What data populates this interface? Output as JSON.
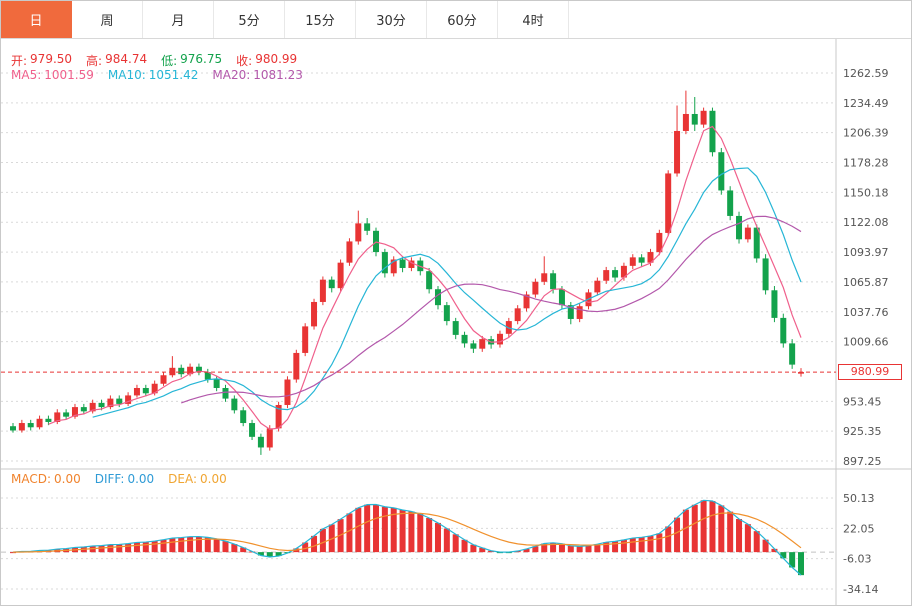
{
  "tabs": [
    {
      "name": "day",
      "label": "日",
      "active": true
    },
    {
      "name": "week",
      "label": "周",
      "active": false
    },
    {
      "name": "month",
      "label": "月",
      "active": false
    },
    {
      "name": "5min",
      "label": "5分",
      "active": false
    },
    {
      "name": "15min",
      "label": "15分",
      "active": false
    },
    {
      "name": "30min",
      "label": "30分",
      "active": false
    },
    {
      "name": "60min",
      "label": "60分",
      "active": false
    },
    {
      "name": "4hour",
      "label": "4时",
      "active": false
    }
  ],
  "quote_bar": {
    "open_label": "开:",
    "open_value": "979.50",
    "high_label": "高:",
    "high_value": "984.74",
    "low_label": "低:",
    "low_value": "976.75",
    "close_label": "收:",
    "close_value": "980.99"
  },
  "ma_bar": {
    "ma5_label": "MA5:",
    "ma5_value": "1001.59",
    "ma10_label": "MA10:",
    "ma10_value": "1051.42",
    "ma20_label": "MA20:",
    "ma20_value": "1081.23"
  },
  "macd_bar": {
    "macd_label": "MACD:",
    "macd_value": "0.00",
    "diff_label": "DIFF:",
    "diff_value": "0.00",
    "dea_label": "DEA:",
    "dea_value": "0.00"
  },
  "current_price_tag": "980.99",
  "colors": {
    "up": "#e83434",
    "down": "#13a24c",
    "ma5": "#f0608c",
    "ma10": "#27b6d6",
    "ma20": "#b358ab",
    "diff": "#27b6d6",
    "dea": "#f0912d",
    "grid": "#d9d9d9",
    "axis_line": "#c9c9c9",
    "active_tab": "#f06a3d",
    "price_line": "#e83434"
  },
  "chart_data": {
    "type": "candlestick",
    "title": "",
    "xlabel": "",
    "ylabel": "",
    "grid": "horizontal-only",
    "legend_position": "none",
    "price_panel": {
      "y_axis_ticks": [
        1262.59,
        1234.49,
        1206.39,
        1178.28,
        1150.18,
        1122.08,
        1093.97,
        1065.87,
        1037.76,
        1009.66,
        953.45,
        925.35,
        897.25
      ],
      "y_range": [
        890,
        1276
      ],
      "current_price": 980.99,
      "last_bar_ohlc": {
        "open": 979.5,
        "high": 984.74,
        "low": 976.75,
        "close": 980.99
      },
      "ma_overlays": [
        {
          "period": 5,
          "displayed_value": 1001.59
        },
        {
          "period": 10,
          "displayed_value": 1051.42
        },
        {
          "period": 20,
          "displayed_value": 1081.23
        }
      ],
      "candles_ohlc_estimated": [
        [
          930,
          933,
          924,
          926
        ],
        [
          926,
          936,
          924,
          933
        ],
        [
          933,
          936,
          926,
          929
        ],
        [
          929,
          940,
          927,
          937
        ],
        [
          937,
          940,
          931,
          934
        ],
        [
          934,
          946,
          932,
          943
        ],
        [
          943,
          946,
          936,
          939
        ],
        [
          939,
          951,
          937,
          948
        ],
        [
          948,
          951,
          941,
          944
        ],
        [
          944,
          955,
          942,
          952
        ],
        [
          952,
          955,
          945,
          948
        ],
        [
          948,
          959,
          946,
          956
        ],
        [
          956,
          959,
          948,
          951
        ],
        [
          951,
          962,
          949,
          959
        ],
        [
          959,
          969,
          957,
          966
        ],
        [
          966,
          969,
          958,
          961
        ],
        [
          961,
          973,
          959,
          970
        ],
        [
          970,
          981,
          968,
          978
        ],
        [
          978,
          996,
          976,
          985
        ],
        [
          985,
          988,
          976,
          979
        ],
        [
          979,
          989,
          977,
          986
        ],
        [
          986,
          989,
          978,
          981
        ],
        [
          981,
          984,
          971,
          974
        ],
        [
          974,
          977,
          963,
          966
        ],
        [
          966,
          969,
          953,
          956
        ],
        [
          956,
          959,
          942,
          945
        ],
        [
          945,
          948,
          930,
          933
        ],
        [
          933,
          936,
          917,
          920
        ],
        [
          920,
          923,
          903,
          910
        ],
        [
          910,
          931,
          907,
          928
        ],
        [
          928,
          953,
          925,
          950
        ],
        [
          950,
          977,
          947,
          974
        ],
        [
          974,
          1002,
          971,
          999
        ],
        [
          999,
          1027,
          996,
          1024
        ],
        [
          1024,
          1050,
          1021,
          1047
        ],
        [
          1047,
          1071,
          1044,
          1068
        ],
        [
          1068,
          1071,
          1056,
          1060
        ],
        [
          1060,
          1087,
          1057,
          1084
        ],
        [
          1084,
          1107,
          1081,
          1104
        ],
        [
          1104,
          1133,
          1101,
          1121
        ],
        [
          1121,
          1126,
          1110,
          1114
        ],
        [
          1114,
          1117,
          1090,
          1094
        ],
        [
          1094,
          1097,
          1070,
          1074
        ],
        [
          1074,
          1090,
          1071,
          1087
        ],
        [
          1087,
          1090,
          1075,
          1079
        ],
        [
          1079,
          1089,
          1076,
          1086
        ],
        [
          1086,
          1089,
          1072,
          1076
        ],
        [
          1076,
          1079,
          1055,
          1059
        ],
        [
          1059,
          1062,
          1040,
          1044
        ],
        [
          1044,
          1047,
          1025,
          1029
        ],
        [
          1029,
          1032,
          1012,
          1016
        ],
        [
          1016,
          1019,
          1004,
          1008
        ],
        [
          1008,
          1011,
          999,
          1003
        ],
        [
          1003,
          1015,
          1000,
          1012
        ],
        [
          1012,
          1015,
          1003,
          1007
        ],
        [
          1007,
          1020,
          1004,
          1017
        ],
        [
          1017,
          1032,
          1014,
          1029
        ],
        [
          1029,
          1044,
          1026,
          1041
        ],
        [
          1041,
          1057,
          1038,
          1054
        ],
        [
          1054,
          1069,
          1051,
          1066
        ],
        [
          1066,
          1090,
          1063,
          1074
        ],
        [
          1074,
          1077,
          1055,
          1059
        ],
        [
          1059,
          1062,
          1040,
          1044
        ],
        [
          1044,
          1047,
          1026,
          1031
        ],
        [
          1031,
          1046,
          1028,
          1043
        ],
        [
          1043,
          1059,
          1040,
          1056
        ],
        [
          1056,
          1070,
          1053,
          1067
        ],
        [
          1067,
          1080,
          1064,
          1077
        ],
        [
          1077,
          1080,
          1066,
          1070
        ],
        [
          1070,
          1084,
          1067,
          1081
        ],
        [
          1081,
          1092,
          1078,
          1089
        ],
        [
          1089,
          1092,
          1080,
          1084
        ],
        [
          1084,
          1097,
          1081,
          1094
        ],
        [
          1094,
          1115,
          1091,
          1112
        ],
        [
          1112,
          1171,
          1109,
          1168
        ],
        [
          1168,
          1232,
          1165,
          1208
        ],
        [
          1208,
          1246,
          1205,
          1224
        ],
        [
          1224,
          1240,
          1208,
          1214
        ],
        [
          1214,
          1230,
          1211,
          1227
        ],
        [
          1227,
          1230,
          1184,
          1188
        ],
        [
          1188,
          1192,
          1148,
          1152
        ],
        [
          1152,
          1156,
          1124,
          1128
        ],
        [
          1128,
          1132,
          1102,
          1106
        ],
        [
          1106,
          1120,
          1103,
          1117
        ],
        [
          1117,
          1120,
          1084,
          1088
        ],
        [
          1088,
          1092,
          1054,
          1058
        ],
        [
          1058,
          1062,
          1028,
          1032
        ],
        [
          1032,
          1036,
          1004,
          1008
        ],
        [
          1008,
          1012,
          984,
          988
        ],
        [
          979.5,
          984.74,
          976.75,
          980.99
        ]
      ]
    },
    "macd_panel": {
      "indicator": "MACD(12,26,9)",
      "y_axis_ticks": [
        50.13,
        22.05,
        -6.03,
        -34.14
      ],
      "displayed_values": {
        "macd": 0.0,
        "diff": 0.0,
        "dea": 0.0
      }
    }
  }
}
